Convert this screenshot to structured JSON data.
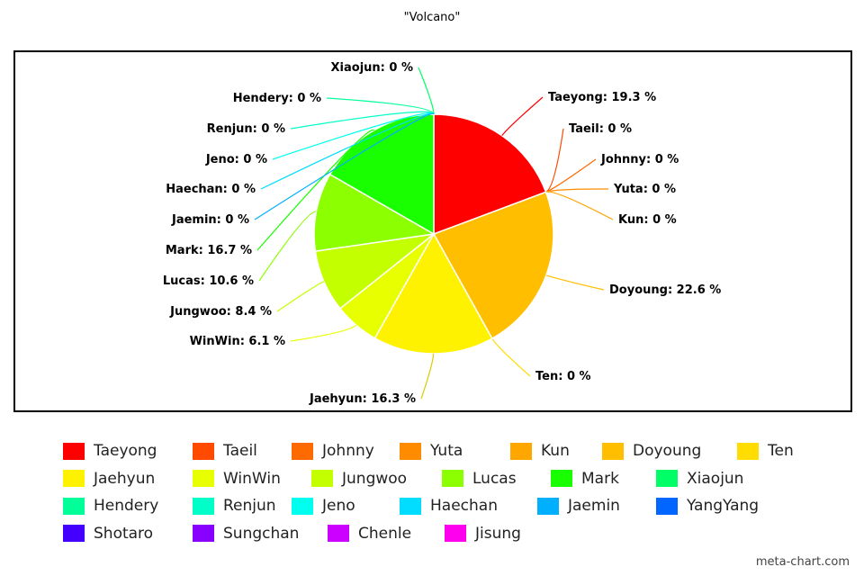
{
  "title": "\"Volcano\"",
  "watermark": "meta-chart.com",
  "chart_data": {
    "type": "pie",
    "title": "\"Volcano\"",
    "label_format": "{name}: {value} %",
    "slices": [
      {
        "name": "Taeyong",
        "value": 19.3,
        "label": "Taeyong: 19.3 %",
        "color": "#ff0000"
      },
      {
        "name": "Taeil",
        "value": 0,
        "label": "Taeil: 0 %",
        "color": "#ff4a00"
      },
      {
        "name": "Johnny",
        "value": 0,
        "label": "Johnny: 0 %",
        "color": "#ff6a00"
      },
      {
        "name": "Yuta",
        "value": 0,
        "label": "Yuta: 0 %",
        "color": "#ff8c00"
      },
      {
        "name": "Kun",
        "value": 0,
        "label": "Kun: 0 %",
        "color": "#ffa600"
      },
      {
        "name": "Doyoung",
        "value": 22.6,
        "label": "Doyoung: 22.6 %",
        "color": "#ffbf00"
      },
      {
        "name": "Ten",
        "value": 0,
        "label": "Ten: 0 %",
        "color": "#ffdd00"
      },
      {
        "name": "Jaehyun",
        "value": 16.3,
        "label": "Jaehyun: 16.3 %",
        "color": "#fff200"
      },
      {
        "name": "WinWin",
        "value": 6.1,
        "label": "WinWin: 6.1 %",
        "color": "#e8ff00"
      },
      {
        "name": "Jungwoo",
        "value": 8.4,
        "label": "Jungwoo: 8.4 %",
        "color": "#c4ff00"
      },
      {
        "name": "Lucas",
        "value": 10.6,
        "label": "Lucas: 10.6 %",
        "color": "#8cff00"
      },
      {
        "name": "Mark",
        "value": 16.7,
        "label": "Mark: 16.7 %",
        "color": "#1aff00"
      },
      {
        "name": "Xiaojun",
        "value": 0,
        "label": "Xiaojun: 0 %",
        "color": "#00ff66"
      },
      {
        "name": "Hendery",
        "value": 0,
        "label": "Hendery: 0 %",
        "color": "#00ff99"
      },
      {
        "name": "Renjun",
        "value": 0,
        "label": "Renjun: 0 %",
        "color": "#00ffc8"
      },
      {
        "name": "Jeno",
        "value": 0,
        "label": "Jeno: 0 %",
        "color": "#00ffee"
      },
      {
        "name": "Haechan",
        "value": 0,
        "label": "Haechan: 0 %",
        "color": "#00ddff"
      },
      {
        "name": "Jaemin",
        "value": 0,
        "label": "Jaemin: 0 %",
        "color": "#00b0ff"
      },
      {
        "name": "YangYang",
        "value": null,
        "label": null,
        "color": "#0066ff"
      },
      {
        "name": "Shotaro",
        "value": null,
        "label": null,
        "color": "#4400ff"
      },
      {
        "name": "Sungchan",
        "value": null,
        "label": null,
        "color": "#8800ff"
      },
      {
        "name": "Chenle",
        "value": null,
        "label": null,
        "color": "#cc00ff"
      },
      {
        "name": "Jisung",
        "value": null,
        "label": null,
        "color": "#ff00ee"
      }
    ],
    "legend_position": "bottom"
  }
}
